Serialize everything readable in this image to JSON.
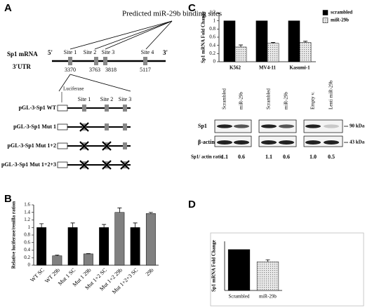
{
  "panel_labels": [
    "A",
    "B",
    "C",
    "D"
  ],
  "diagram": {
    "title": "Predicted miR-29b binding sites",
    "mrna_label": "Sp1 mRNA",
    "utr_label": "3'UTR",
    "five_prime": "5'",
    "three_prime": "3'",
    "sites": [
      "Site 1",
      "Site 2",
      "Site 3",
      "Site 4"
    ],
    "positions": [
      "3370",
      "3763",
      "3818",
      "5117"
    ],
    "luciferase": "Luciferase",
    "construct_sites": [
      "Site 1",
      "Site 2",
      "Site 3"
    ],
    "constructs": [
      "pGL-3-Sp1 WT",
      "pGL-3-Sp1 Mut 1",
      "pGL-3-Sp1 Mut 1+2",
      "pGL-3-Sp1 Mut 1+2+3"
    ]
  },
  "blot": {
    "lanes": [
      "Scrambled",
      "miR-29b",
      "Scrambled",
      "miR-29b",
      "Empty v.",
      "Lenti miR-29b"
    ],
    "rows": [
      "Sp1",
      "β-actin"
    ],
    "markers": [
      "90 kDa",
      "43 kDa"
    ],
    "ratio_label": "Sp1/ actin ratio",
    "ratios": [
      "1.1",
      "0.6",
      "1.1",
      "0.6",
      "1.0",
      "0.5"
    ]
  },
  "chart_data": [
    {
      "type": "bar",
      "y_label": "Relative luciferase/renilla ration",
      "categories": [
        "WT SC",
        "WT 29b",
        "Mut 1 SC",
        "Mut 1 29b",
        "Mut 1+2 SC",
        "Mut 1+2 29b",
        "Mut 1+2+3 SC",
        "29b"
      ],
      "values": [
        1.0,
        0.25,
        1.0,
        0.3,
        1.0,
        1.4,
        1.0,
        1.37
      ],
      "errors": [
        0.1,
        0.02,
        0.12,
        0.01,
        0.08,
        0.12,
        0.12,
        0.03
      ],
      "colors": [
        "#000000",
        "#808080",
        "#000000",
        "#808080",
        "#000000",
        "#808080",
        "#000000",
        "#808080"
      ],
      "ylim": [
        0,
        1.6
      ],
      "yticks": [
        0,
        0.2,
        0.4,
        0.6,
        0.8,
        1,
        1.2,
        1.4,
        1.6
      ]
    },
    {
      "type": "bar",
      "y_label": "Sp1 mRNA Fold Change",
      "categories": [
        "K562",
        "MV4-11",
        "Kasumi-1"
      ],
      "series": [
        {
          "name": "scrambled",
          "color": "#000000",
          "values": [
            1,
            1,
            1
          ]
        },
        {
          "name": "miR-29b",
          "color": "#e8e8e8",
          "hatch": "dots",
          "values": [
            0.36,
            0.45,
            0.47
          ],
          "errors": [
            0.05,
            0.02,
            0.03
          ]
        }
      ],
      "ylim": [
        0,
        1.2
      ],
      "yticks": [
        0,
        0.2,
        0.4,
        0.6,
        0.8,
        1,
        1.2
      ],
      "legend": "upper right"
    },
    {
      "type": "bar",
      "y_label": "Sp1 mRNA Fold Change",
      "categories": [
        "Scrambled",
        "miR-29b"
      ],
      "values": [
        1,
        0.7
      ],
      "errors": [
        null,
        0.05
      ],
      "colors": [
        "#000000",
        "#e8e8e8"
      ],
      "hatches": [
        null,
        "dots"
      ],
      "ylim": [
        0,
        1.2
      ]
    }
  ]
}
